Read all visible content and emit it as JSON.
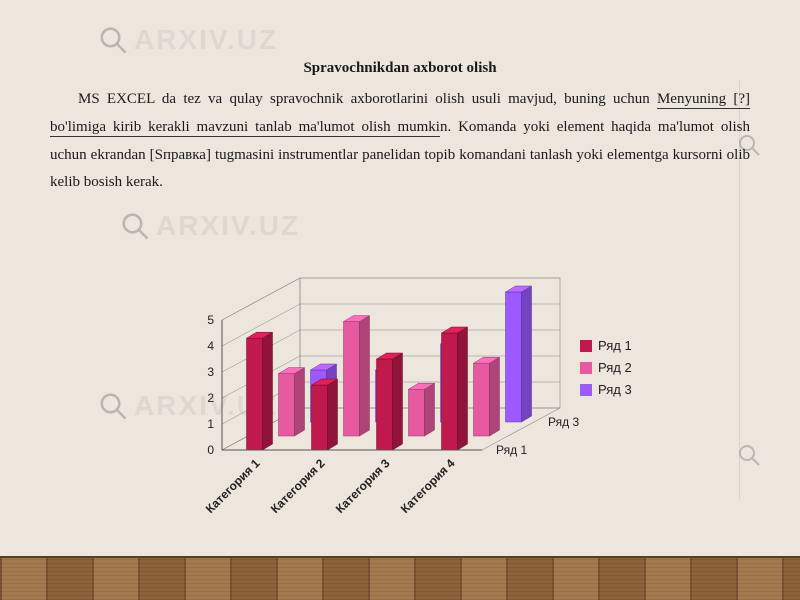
{
  "watermark_text": "ARXIV.UZ",
  "heading": "Spravochnikdan axborot olish",
  "paragraph_pre": "MS EXCEL da tez va qulay spravochnik axborotlarini olish usuli mavjud, buning uchun ",
  "paragraph_underlined": "Menyuning [?] bo'limiga kirib kerakli mavzuni tanlab ma'lumot olish mumki",
  "paragraph_post": "n. Komanda yoki element haqida ma'lumot olish uchun ekrandan [Sправка] tugmasini instrumentlar panelidan topib komandani tanlash yoki elementga kursorni olib kelib bosish kerak.",
  "chart": {
    "type": "3d-bar",
    "background_color": "transparent",
    "axis_color": "#555555",
    "grid_color": "#888888",
    "y": {
      "min": 0,
      "max": 5,
      "ticks": [
        "0",
        "1",
        "2",
        "3",
        "4",
        "5"
      ],
      "fontsize": 12
    },
    "categories": [
      "Категория 1",
      "Категория 2",
      "Категория 3",
      "Категория 4"
    ],
    "category_fontsize": 12,
    "series": [
      {
        "name": "Ряд 1",
        "color": "#c0194b",
        "values": [
          4.3,
          2.5,
          3.5,
          4.5
        ]
      },
      {
        "name": "Ряд 2",
        "color": "#e85aa0",
        "values": [
          2.4,
          4.4,
          1.8,
          2.8
        ]
      },
      {
        "name": "Ряд 3",
        "color": "#9b59ff",
        "values": [
          2.0,
          2.0,
          3.0,
          5.0
        ]
      }
    ],
    "depth_labels": [
      "Ряд 1",
      "Ряд 3"
    ],
    "legend": {
      "position": "right",
      "items": [
        {
          "label": "Ряд 1",
          "color": "#c0194b"
        },
        {
          "label": "Ряд 2",
          "color": "#e85aa0"
        },
        {
          "label": "Ряд 3",
          "color": "#9b59ff"
        }
      ],
      "fontsize": 13
    }
  }
}
